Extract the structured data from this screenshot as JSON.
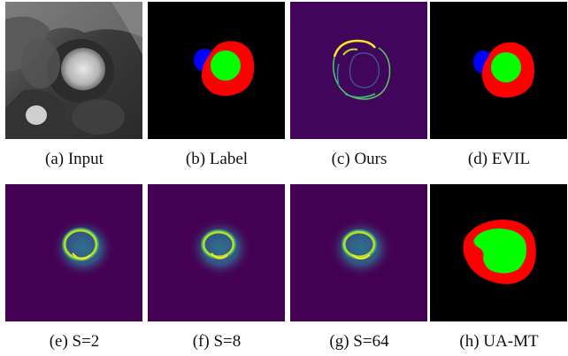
{
  "colors": {
    "background": "#ffffff",
    "label_black": "#000000",
    "label_red": "#ff0000",
    "label_green": "#00ff00",
    "label_blue": "#0000ff",
    "viridis_dark": "#440154",
    "viridis_mid": "#21918c",
    "viridis_yellow": "#fde725"
  },
  "panels": {
    "a": {
      "caption": "(a) Input",
      "image": "cardiac-mri-slice"
    },
    "b": {
      "caption": "(b) Label",
      "image": "segmentation-label"
    },
    "c": {
      "caption": "(c) Ours",
      "image": "uncertainty-map-ours"
    },
    "d": {
      "caption": "(d) EVIL",
      "image": "segmentation-evil"
    },
    "e": {
      "caption": "(e) S=2",
      "image": "uncertainty-map-s2"
    },
    "f": {
      "caption": "(f) S=8",
      "image": "uncertainty-map-s8"
    },
    "g": {
      "caption": "(g) S=64",
      "image": "uncertainty-map-s64"
    },
    "h": {
      "caption": "(h) UA-MT",
      "image": "segmentation-ua-mt"
    }
  }
}
